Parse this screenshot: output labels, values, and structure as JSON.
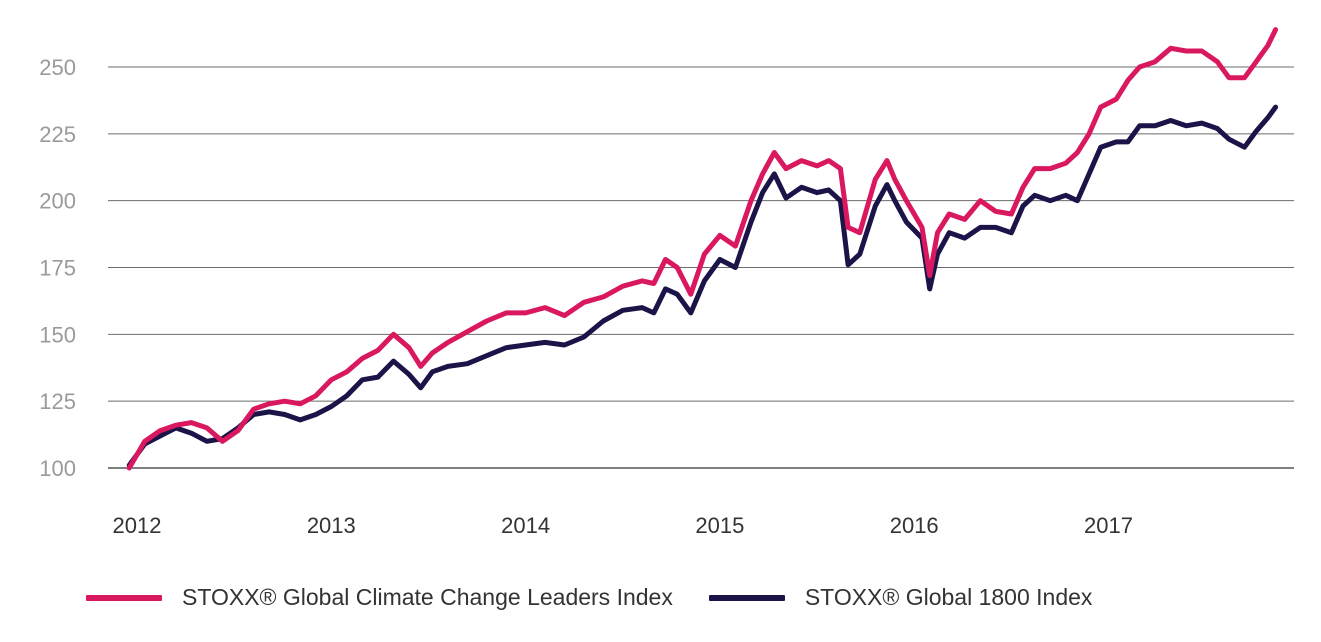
{
  "chart_data": {
    "type": "line",
    "title": "",
    "xlabel": "",
    "ylabel": "",
    "x_ticks": [
      "2012",
      "2013",
      "2014",
      "2015",
      "2016",
      "2017"
    ],
    "y_ticks": [
      100,
      125,
      150,
      175,
      200,
      225,
      250
    ],
    "ylim": [
      100,
      265
    ],
    "xlim": [
      2011.96,
      2017.87
    ],
    "grid": "horizontal",
    "legend": "bottom",
    "series": [
      {
        "name": "STOXX® Global Climate Change Leaders Index",
        "color": "#d9185f",
        "x": [
          2011.96,
          2012.04,
          2012.12,
          2012.2,
          2012.28,
          2012.36,
          2012.44,
          2012.52,
          2012.6,
          2012.68,
          2012.76,
          2012.84,
          2012.92,
          2013.0,
          2013.08,
          2013.16,
          2013.24,
          2013.32,
          2013.4,
          2013.46,
          2013.52,
          2013.6,
          2013.7,
          2013.8,
          2013.9,
          2014.0,
          2014.1,
          2014.2,
          2014.3,
          2014.4,
          2014.5,
          2014.6,
          2014.66,
          2014.72,
          2014.78,
          2014.85,
          2014.92,
          2015.0,
          2015.08,
          2015.16,
          2015.22,
          2015.28,
          2015.34,
          2015.42,
          2015.5,
          2015.56,
          2015.62,
          2015.66,
          2015.72,
          2015.8,
          2015.86,
          2015.9,
          2015.96,
          2016.04,
          2016.08,
          2016.12,
          2016.18,
          2016.26,
          2016.34,
          2016.42,
          2016.5,
          2016.56,
          2016.62,
          2016.7,
          2016.78,
          2016.84,
          2016.9,
          2016.96,
          2017.04,
          2017.1,
          2017.16,
          2017.24,
          2017.32,
          2017.4,
          2017.48,
          2017.56,
          2017.62,
          2017.7,
          2017.76,
          2017.82,
          2017.86
        ],
        "values": [
          100,
          110,
          114,
          116,
          117,
          115,
          110,
          114,
          122,
          124,
          125,
          124,
          127,
          133,
          136,
          141,
          144,
          150,
          145,
          138,
          143,
          147,
          151,
          155,
          158,
          158,
          160,
          157,
          162,
          164,
          168,
          170,
          169,
          178,
          175,
          165,
          180,
          187,
          183,
          200,
          210,
          218,
          212,
          215,
          213,
          215,
          212,
          190,
          188,
          208,
          215,
          208,
          200,
          190,
          172,
          188,
          195,
          193,
          200,
          196,
          195,
          205,
          212,
          212,
          214,
          218,
          225,
          235,
          238,
          245,
          250,
          252,
          257,
          256,
          256,
          252,
          246,
          246,
          252,
          258,
          264
        ]
      },
      {
        "name": "STOXX® Global 1800 Index",
        "color": "#1b1448",
        "x": [
          2011.96,
          2012.04,
          2012.12,
          2012.2,
          2012.28,
          2012.36,
          2012.44,
          2012.52,
          2012.6,
          2012.68,
          2012.76,
          2012.84,
          2012.92,
          2013.0,
          2013.08,
          2013.16,
          2013.24,
          2013.32,
          2013.4,
          2013.46,
          2013.52,
          2013.6,
          2013.7,
          2013.8,
          2013.9,
          2014.0,
          2014.1,
          2014.2,
          2014.3,
          2014.4,
          2014.5,
          2014.6,
          2014.66,
          2014.72,
          2014.78,
          2014.85,
          2014.92,
          2015.0,
          2015.08,
          2015.16,
          2015.22,
          2015.28,
          2015.34,
          2015.42,
          2015.5,
          2015.56,
          2015.62,
          2015.66,
          2015.72,
          2015.8,
          2015.86,
          2015.9,
          2015.96,
          2016.04,
          2016.08,
          2016.12,
          2016.18,
          2016.26,
          2016.34,
          2016.42,
          2016.5,
          2016.56,
          2016.62,
          2016.7,
          2016.78,
          2016.84,
          2016.9,
          2016.96,
          2017.04,
          2017.1,
          2017.16,
          2017.24,
          2017.32,
          2017.4,
          2017.48,
          2017.56,
          2017.62,
          2017.7,
          2017.76,
          2017.82,
          2017.86
        ],
        "values": [
          101,
          109,
          112,
          115,
          113,
          110,
          111,
          115,
          120,
          121,
          120,
          118,
          120,
          123,
          127,
          133,
          134,
          140,
          135,
          130,
          136,
          138,
          139,
          142,
          145,
          146,
          147,
          146,
          149,
          155,
          159,
          160,
          158,
          167,
          165,
          158,
          170,
          178,
          175,
          192,
          203,
          210,
          201,
          205,
          203,
          204,
          200,
          176,
          180,
          198,
          206,
          200,
          192,
          186,
          167,
          180,
          188,
          186,
          190,
          190,
          188,
          198,
          202,
          200,
          202,
          200,
          210,
          220,
          222,
          222,
          228,
          228,
          230,
          228,
          229,
          227,
          223,
          220,
          226,
          231,
          235
        ]
      }
    ]
  }
}
